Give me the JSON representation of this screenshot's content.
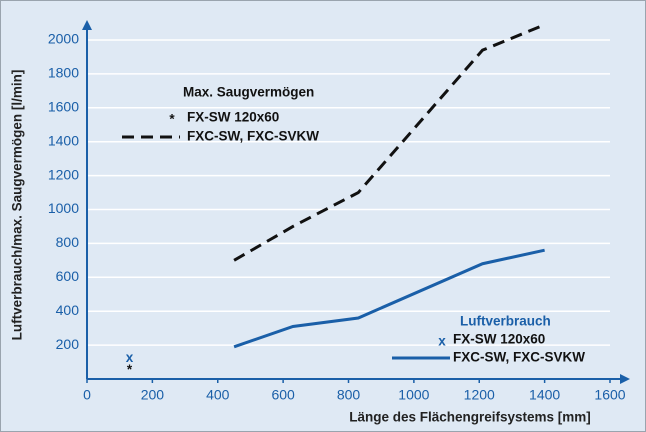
{
  "chart_data": {
    "type": "line",
    "xlabel": "Länge des Flächengreifsystems [mm]",
    "ylabel": "Luftverbrauch/max. Saugvermögen [l/min]",
    "xlim": [
      0,
      1600
    ],
    "xticks": [
      0,
      200,
      400,
      600,
      800,
      1000,
      1200,
      1400,
      1600
    ],
    "ylim": [
      0,
      2000
    ],
    "yticks": [
      200,
      400,
      600,
      800,
      1000,
      1200,
      1400,
      1600,
      1800,
      2000
    ],
    "grid": true,
    "groups": [
      {
        "title": "Max. Saugvermögen",
        "color": "#111111",
        "series": [
          {
            "name": "FX-SW 120x60",
            "marker": "*",
            "x": [
              130
            ],
            "values": [
              50
            ]
          },
          {
            "name": "FXC-SW, FXC-SVKW",
            "dash": true,
            "x": [
              450,
              630,
              830,
              1210,
              1400
            ],
            "values": [
              700,
              900,
              1100,
              1940,
              2090
            ]
          }
        ]
      },
      {
        "title": "Luftverbrauch",
        "color": "#1a5fa8",
        "series": [
          {
            "name": "FX-SW 120x60",
            "marker": "x",
            "x": [
              130
            ],
            "values": [
              120
            ]
          },
          {
            "name": "FXC-SW, FXC-SVKW",
            "dash": false,
            "x": [
              450,
              630,
              830,
              1210,
              1400
            ],
            "values": [
              190,
              310,
              360,
              680,
              760
            ]
          }
        ]
      }
    ]
  }
}
